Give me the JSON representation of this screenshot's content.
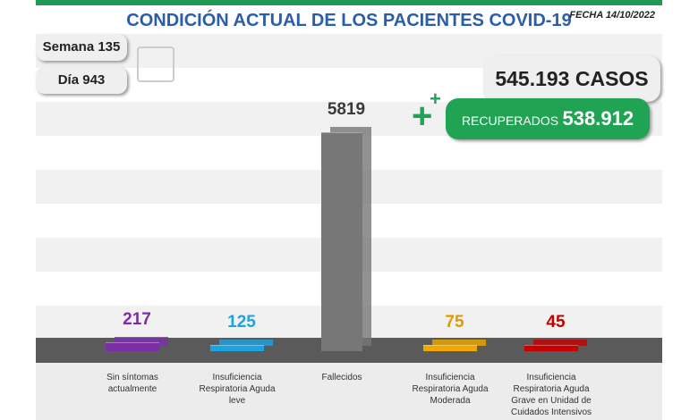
{
  "header": {
    "title": "CONDICIÓN ACTUAL DE LOS PACIENTES COVID-19",
    "date": "FECHA 14/10/2022",
    "week": "Semana 135",
    "day": "Día 943",
    "cases": "545.193 CASOS",
    "recovered_label": "RECUPERADOS",
    "recovered_value": "538.912"
  },
  "chart_data": {
    "type": "bar",
    "categories": [
      "Sin síntomas actualmente",
      "Insuficiencia Respiratoria Aguda leve",
      "Fallecidos",
      "Insuficiencia Respiratoria Aguda Moderada",
      "Insuficiencia Respiratoria Aguda Grave en Unidad de Cuidados Intensivos"
    ],
    "values": [
      217,
      125,
      5819,
      75,
      45
    ],
    "colors": [
      "#7a2fa6",
      "#1fa3df",
      "#777777",
      "#f0a800",
      "#c40000"
    ],
    "label_colors": [
      "#7a2fa6",
      "#1fa3df",
      "#3a3a3a",
      "#e09a00",
      "#c40000"
    ]
  }
}
